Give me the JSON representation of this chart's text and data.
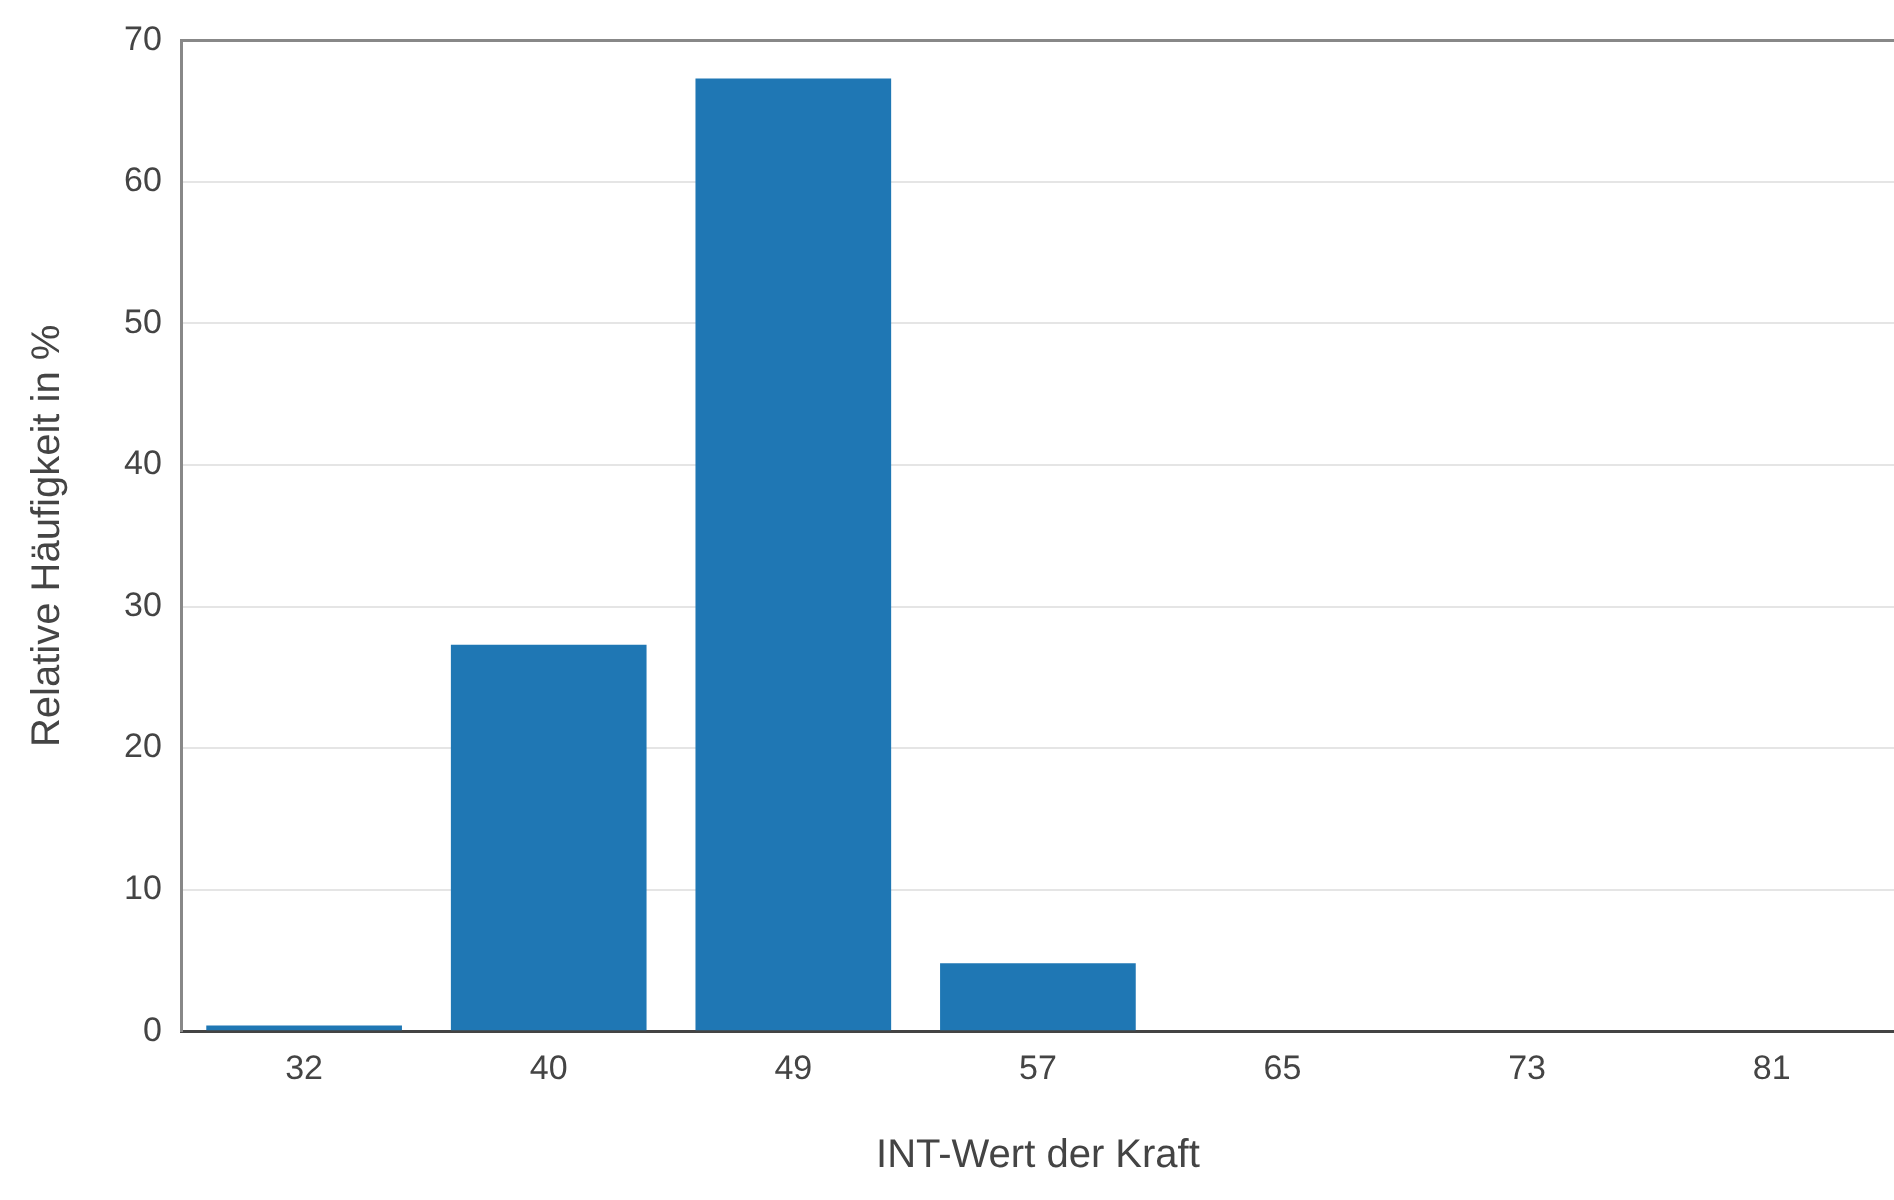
{
  "chart_data": {
    "type": "bar",
    "xlabel": "INT-Wert der Kraft",
    "ylabel": "Relative Häufigkeit in %",
    "categories": [
      "32",
      "40",
      "49",
      "57",
      "65",
      "73",
      "81"
    ],
    "values": [
      0.4,
      27.3,
      67.3,
      4.8,
      0,
      0,
      0
    ],
    "color": "#1f77b4",
    "ylim": [
      0,
      70
    ],
    "yticks": [
      0,
      10,
      20,
      30,
      40,
      50,
      60,
      70
    ],
    "grid": "y",
    "legend": false
  }
}
